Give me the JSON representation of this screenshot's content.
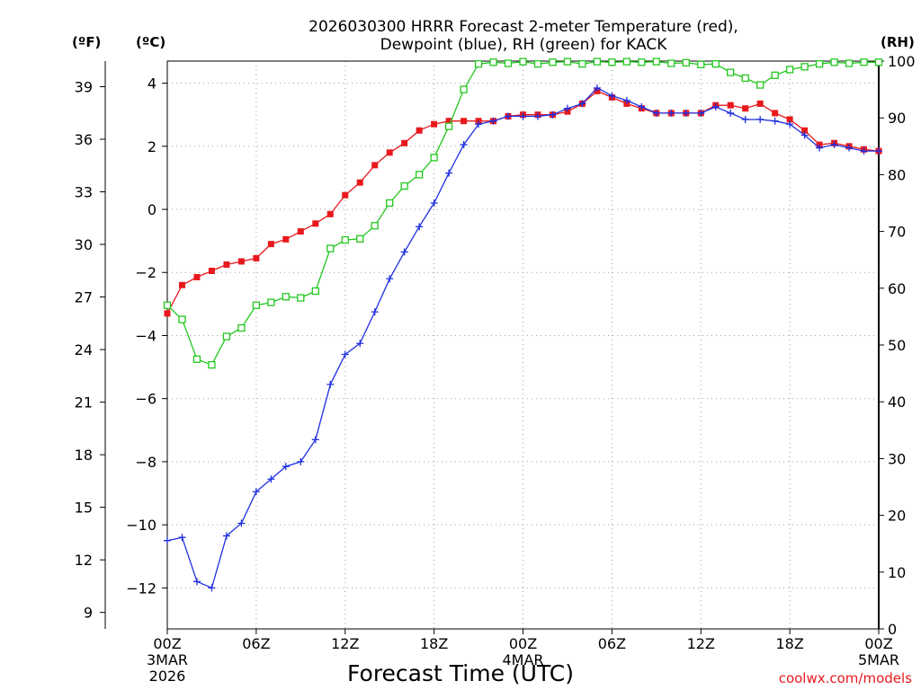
{
  "chart_data": {
    "type": "line",
    "title_line1": "2026030300 HRRR Forecast 2-meter Temperature (red),",
    "title_line2": "Dewpoint (blue), RH (green) for KACK",
    "xlabel": "Forecast Time (UTC)",
    "credit": "coolwx.com/models",
    "unit_labels": {
      "fahrenheit": "(ºF)",
      "celsius": "(ºC)",
      "rh": "(RH)"
    },
    "x_range_hours": [
      0,
      48
    ],
    "celsius_range": [
      -13.3,
      4.7
    ],
    "rh_range": [
      0,
      100
    ],
    "x_ticks": [
      {
        "hour": 0,
        "l1": "00Z",
        "l2": "3MAR",
        "l3": "2026"
      },
      {
        "hour": 6,
        "l1": "06Z",
        "l2": "",
        "l3": ""
      },
      {
        "hour": 12,
        "l1": "12Z",
        "l2": "",
        "l3": ""
      },
      {
        "hour": 18,
        "l1": "18Z",
        "l2": "",
        "l3": ""
      },
      {
        "hour": 24,
        "l1": "00Z",
        "l2": "4MAR",
        "l3": ""
      },
      {
        "hour": 30,
        "l1": "06Z",
        "l2": "",
        "l3": ""
      },
      {
        "hour": 36,
        "l1": "12Z",
        "l2": "",
        "l3": ""
      },
      {
        "hour": 42,
        "l1": "18Z",
        "l2": "",
        "l3": ""
      },
      {
        "hour": 48,
        "l1": "00Z",
        "l2": "5MAR",
        "l3": ""
      }
    ],
    "celsius_ticks": [
      "−12",
      "−10",
      "−8",
      "−6",
      "−4",
      "−2",
      "0",
      "2",
      "4"
    ],
    "celsius_tick_values": [
      -12,
      -10,
      -8,
      -6,
      -4,
      -2,
      0,
      2,
      4
    ],
    "fahrenheit_ticks": [
      "9",
      "12",
      "15",
      "18",
      "21",
      "24",
      "27",
      "30",
      "33",
      "36",
      "39"
    ],
    "fahrenheit_tick_values": [
      9,
      12,
      15,
      18,
      21,
      24,
      27,
      30,
      33,
      36,
      39
    ],
    "rh_ticks": [
      "0",
      "10",
      "20",
      "30",
      "40",
      "50",
      "60",
      "70",
      "80",
      "90",
      "100"
    ],
    "rh_tick_values": [
      0,
      10,
      20,
      30,
      40,
      50,
      60,
      70,
      80,
      90,
      100
    ],
    "series": [
      {
        "name": "Temperature",
        "axis": "celsius",
        "color": "#e8191d",
        "marker": "filled-square",
        "values": [
          -3.3,
          -2.4,
          -2.15,
          -1.95,
          -1.75,
          -1.65,
          -1.55,
          -1.1,
          -0.95,
          -0.7,
          -0.45,
          -0.15,
          0.45,
          0.85,
          1.4,
          1.8,
          2.1,
          2.5,
          2.7,
          2.8,
          2.8,
          2.8,
          2.8,
          2.95,
          3.0,
          3.0,
          3.0,
          3.1,
          3.35,
          3.75,
          3.55,
          3.35,
          3.2,
          3.05,
          3.05,
          3.05,
          3.05,
          3.3,
          3.3,
          3.2,
          3.35,
          3.05,
          2.85,
          2.5,
          2.05,
          2.1,
          2.0,
          1.9,
          1.85
        ]
      },
      {
        "name": "Dewpoint",
        "axis": "celsius",
        "color": "#2030e0",
        "marker": "plus",
        "values": [
          -10.5,
          -10.4,
          -11.8,
          -12.0,
          -10.35,
          -9.95,
          -8.95,
          -8.55,
          -8.15,
          -8.0,
          -7.3,
          -5.55,
          -4.6,
          -4.25,
          -3.25,
          -2.2,
          -1.35,
          -0.55,
          0.2,
          1.15,
          2.05,
          2.7,
          2.8,
          2.95,
          2.95,
          2.95,
          3.0,
          3.2,
          3.35,
          3.85,
          3.6,
          3.45,
          3.25,
          3.05,
          3.05,
          3.05,
          3.05,
          3.25,
          3.05,
          2.85,
          2.85,
          2.8,
          2.7,
          2.35,
          1.95,
          2.05,
          1.95,
          1.85,
          1.85
        ]
      },
      {
        "name": "RH",
        "axis": "rh",
        "color": "#22c81e",
        "marker": "open-square",
        "values": [
          57,
          54.5,
          47.5,
          46.5,
          51.5,
          53,
          57,
          57.5,
          58.5,
          58.3,
          59.5,
          67,
          68.5,
          68.7,
          71,
          75,
          78,
          80,
          83,
          88.5,
          95,
          99.5,
          99.8,
          99.6,
          99.9,
          99.5,
          99.8,
          99.9,
          99.5,
          99.9,
          99.8,
          99.9,
          99.8,
          99.9,
          99.6,
          99.7,
          99.4,
          99.5,
          98,
          97,
          95.8,
          97.5,
          98.5,
          99,
          99.5,
          99.8,
          99.6,
          99.8,
          99.8
        ]
      }
    ]
  }
}
